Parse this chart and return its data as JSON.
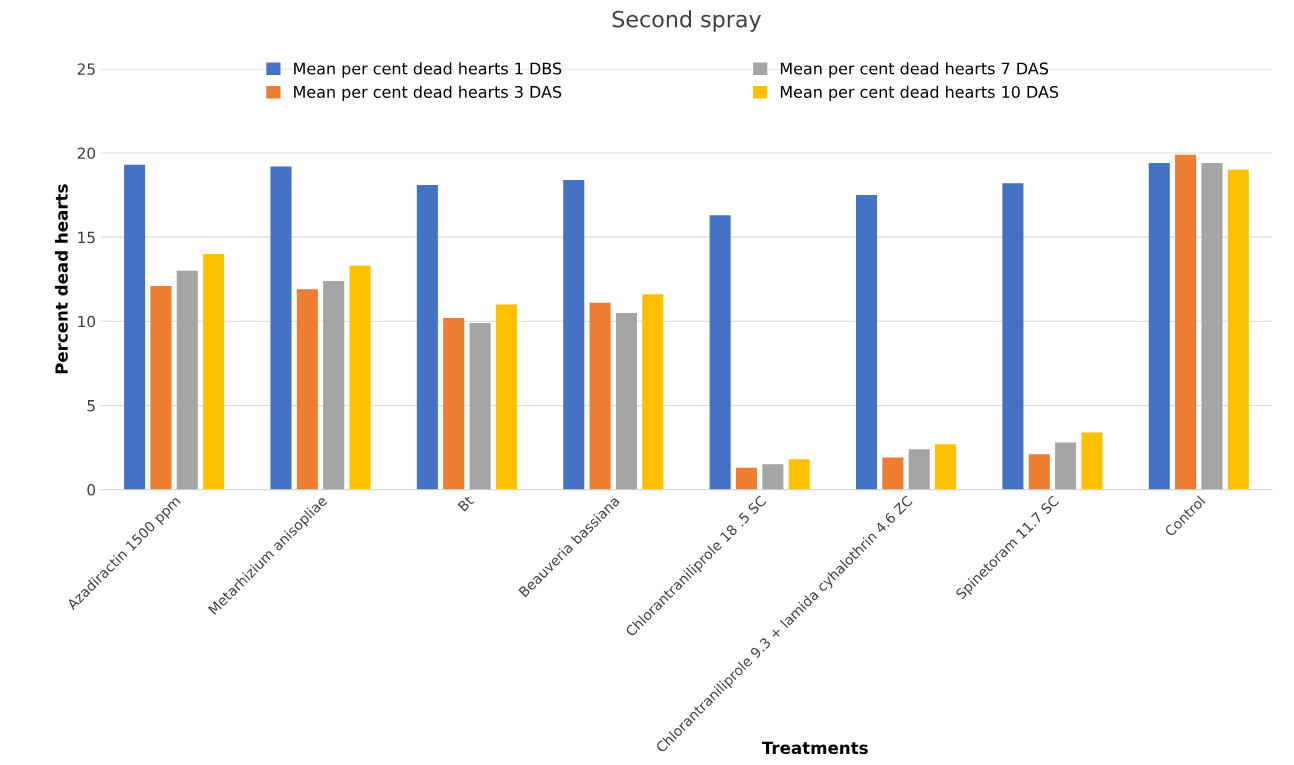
{
  "chart_data": {
    "type": "bar",
    "title": "Second spray",
    "xlabel": "Treatments",
    "ylabel": "Percent dead hearts",
    "categories": [
      "Azadiractin 1500 ppm",
      "Metarhizium anisopliae",
      "Bt",
      "Beauveria bassiana",
      "Chlorantraniliprole 18 .5 SC",
      "Chlorantraniliprole 9.3 + lamida cyhalothrin 4.6 ZC",
      "Spinetoram 11.7 SC",
      "Control"
    ],
    "series": [
      {
        "name": "Mean per cent dead hearts 1 DBS",
        "color": "#4472c4",
        "values": [
          19.3,
          19.2,
          18.1,
          18.4,
          16.3,
          17.5,
          18.2,
          19.4
        ]
      },
      {
        "name": "Mean per cent dead hearts 3 DAS",
        "color": "#ed7d31",
        "values": [
          12.1,
          11.9,
          10.2,
          11.1,
          1.3,
          1.9,
          2.1,
          19.9
        ]
      },
      {
        "name": "Mean per cent dead hearts 7 DAS",
        "color": "#a5a5a5",
        "values": [
          13.0,
          12.4,
          9.9,
          10.5,
          1.5,
          2.4,
          2.8,
          19.4
        ]
      },
      {
        "name": "Mean per cent dead hearts 10 DAS",
        "color": "#ffc000",
        "values": [
          14.0,
          13.3,
          11.0,
          11.6,
          1.8,
          2.7,
          3.4,
          19.0
        ]
      }
    ],
    "ylim": [
      0,
      25
    ],
    "yticks": [
      0,
      5,
      10,
      15,
      20,
      25
    ],
    "grid": "y",
    "legend": "top"
  }
}
